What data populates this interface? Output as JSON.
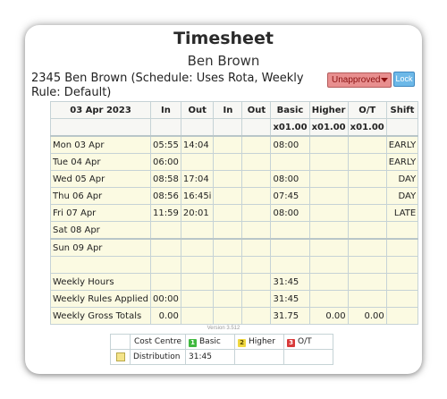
{
  "title": "Timesheet",
  "employee_name": "Ben Brown",
  "employee_line": "2345 Ben Brown (Schedule: Uses Rota, Weekly Rule: Default)",
  "status": {
    "value": "Unapproved",
    "color": "#e88f8f"
  },
  "lock_label": "Lock",
  "table": {
    "week_label": "03 Apr 2023",
    "columns": [
      "In",
      "Out",
      "In",
      "Out",
      "Basic",
      "Higher",
      "O/T",
      "Shift"
    ],
    "multipliers": [
      "",
      "",
      "",
      "",
      "x01.00",
      "x01.00",
      "x01.00",
      ""
    ],
    "days": [
      {
        "label": "Mon 03 Apr",
        "cells": [
          "05:55",
          "14:04",
          "",
          "",
          "08:00",
          "",
          "",
          "EARLY"
        ]
      },
      {
        "label": "Tue 04 Apr",
        "cells": [
          "06:00",
          "",
          "",
          "",
          "",
          "",
          "",
          "EARLY"
        ]
      },
      {
        "label": "Wed 05 Apr",
        "cells": [
          "08:58",
          "17:04",
          "",
          "",
          "08:00",
          "",
          "",
          "DAY"
        ]
      },
      {
        "label": "Thu 06 Apr",
        "cells": [
          "08:56",
          "16:45i",
          "",
          "",
          "07:45",
          "",
          "",
          "DAY"
        ]
      },
      {
        "label": "Fri 07 Apr",
        "cells": [
          "11:59",
          "20:01",
          "",
          "",
          "08:00",
          "",
          "",
          "LATE"
        ]
      },
      {
        "label": "Sat 08 Apr",
        "cells": [
          "",
          "",
          "",
          "",
          "",
          "",
          "",
          ""
        ]
      },
      {
        "label": "Sun 09 Apr",
        "cells": [
          "",
          "",
          "",
          "",
          "",
          "",
          "",
          ""
        ]
      }
    ],
    "summary": [
      {
        "label": "Weekly Hours",
        "cells": [
          "",
          "",
          "",
          "",
          "31:45",
          "",
          "",
          ""
        ]
      },
      {
        "label": "Weekly Rules Applied",
        "cells": [
          "00:00",
          "",
          "",
          "",
          "31:45",
          "",
          "",
          ""
        ]
      },
      {
        "label": "Weekly Gross Totals",
        "cells": [
          "0.00",
          "",
          "",
          "",
          "31.75",
          "0.00",
          "0.00",
          ""
        ]
      }
    ]
  },
  "version": "Version 3.512",
  "cost_centre": {
    "header": "Cost Centre",
    "basic": {
      "num": "1",
      "label": "Basic",
      "color": "#3fb83f"
    },
    "higher": {
      "num": "2",
      "label": "Higher",
      "color": "#f0d840"
    },
    "ot": {
      "num": "3",
      "label": "O/T",
      "color": "#d83a3a"
    },
    "row_label": "Distribution",
    "row_value": "31:45",
    "swatch_color": "#f4e48a"
  }
}
